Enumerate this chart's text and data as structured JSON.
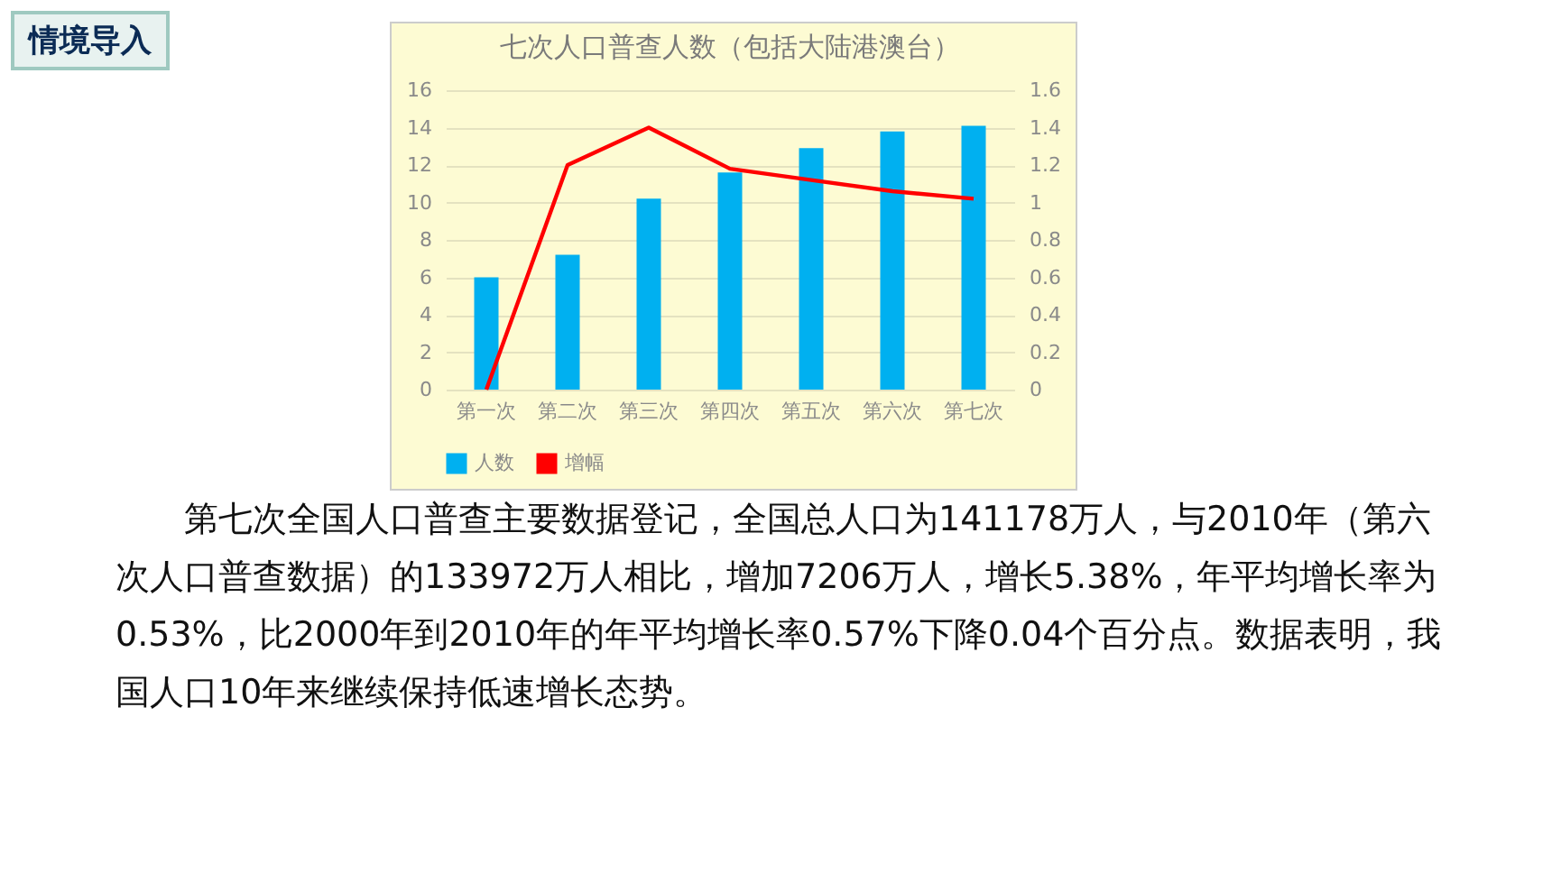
{
  "chart_data": {
    "type": "bar",
    "title": "七次人口普查人数（包括大陆港澳台）",
    "categories": [
      "第一次",
      "第二次",
      "第三次",
      "第四次",
      "第五次",
      "第六次",
      "第七次"
    ],
    "series": [
      {
        "name": "人数",
        "color": "#00b0f0",
        "values": [
          6.0,
          7.2,
          10.2,
          11.6,
          12.9,
          13.8,
          14.1
        ]
      },
      {
        "name": "增幅",
        "type": "line",
        "axis": "y2",
        "color": "#ff0000",
        "values": [
          0,
          1.2,
          1.4,
          1.18,
          1.12,
          1.06,
          1.02
        ]
      }
    ],
    "ylim": [
      0,
      16
    ],
    "yticks": [
      0,
      2,
      4,
      6,
      8,
      10,
      12,
      14,
      16
    ],
    "y2lim": [
      0,
      1.6
    ],
    "y2ticks": [
      0,
      0.2,
      0.4,
      0.6,
      0.8,
      1,
      1.2,
      1.4,
      1.6
    ],
    "grid": "y",
    "legend": "bottom",
    "marker": "none",
    "annotations": [
      "情境导入",
      "第七次全国人口普查主要数据登记，全国总人口为141178万人，与2010年（第六次人口普查数据）的133972万人相比，增加7206万人，增长5.38%，年平均增长率为0.53%，比2000年到2010年的年平均增长率0.57%下降0.04个百分点。数据表明，我国人口10年来继续保持低速增长态势。"
    ]
  }
}
